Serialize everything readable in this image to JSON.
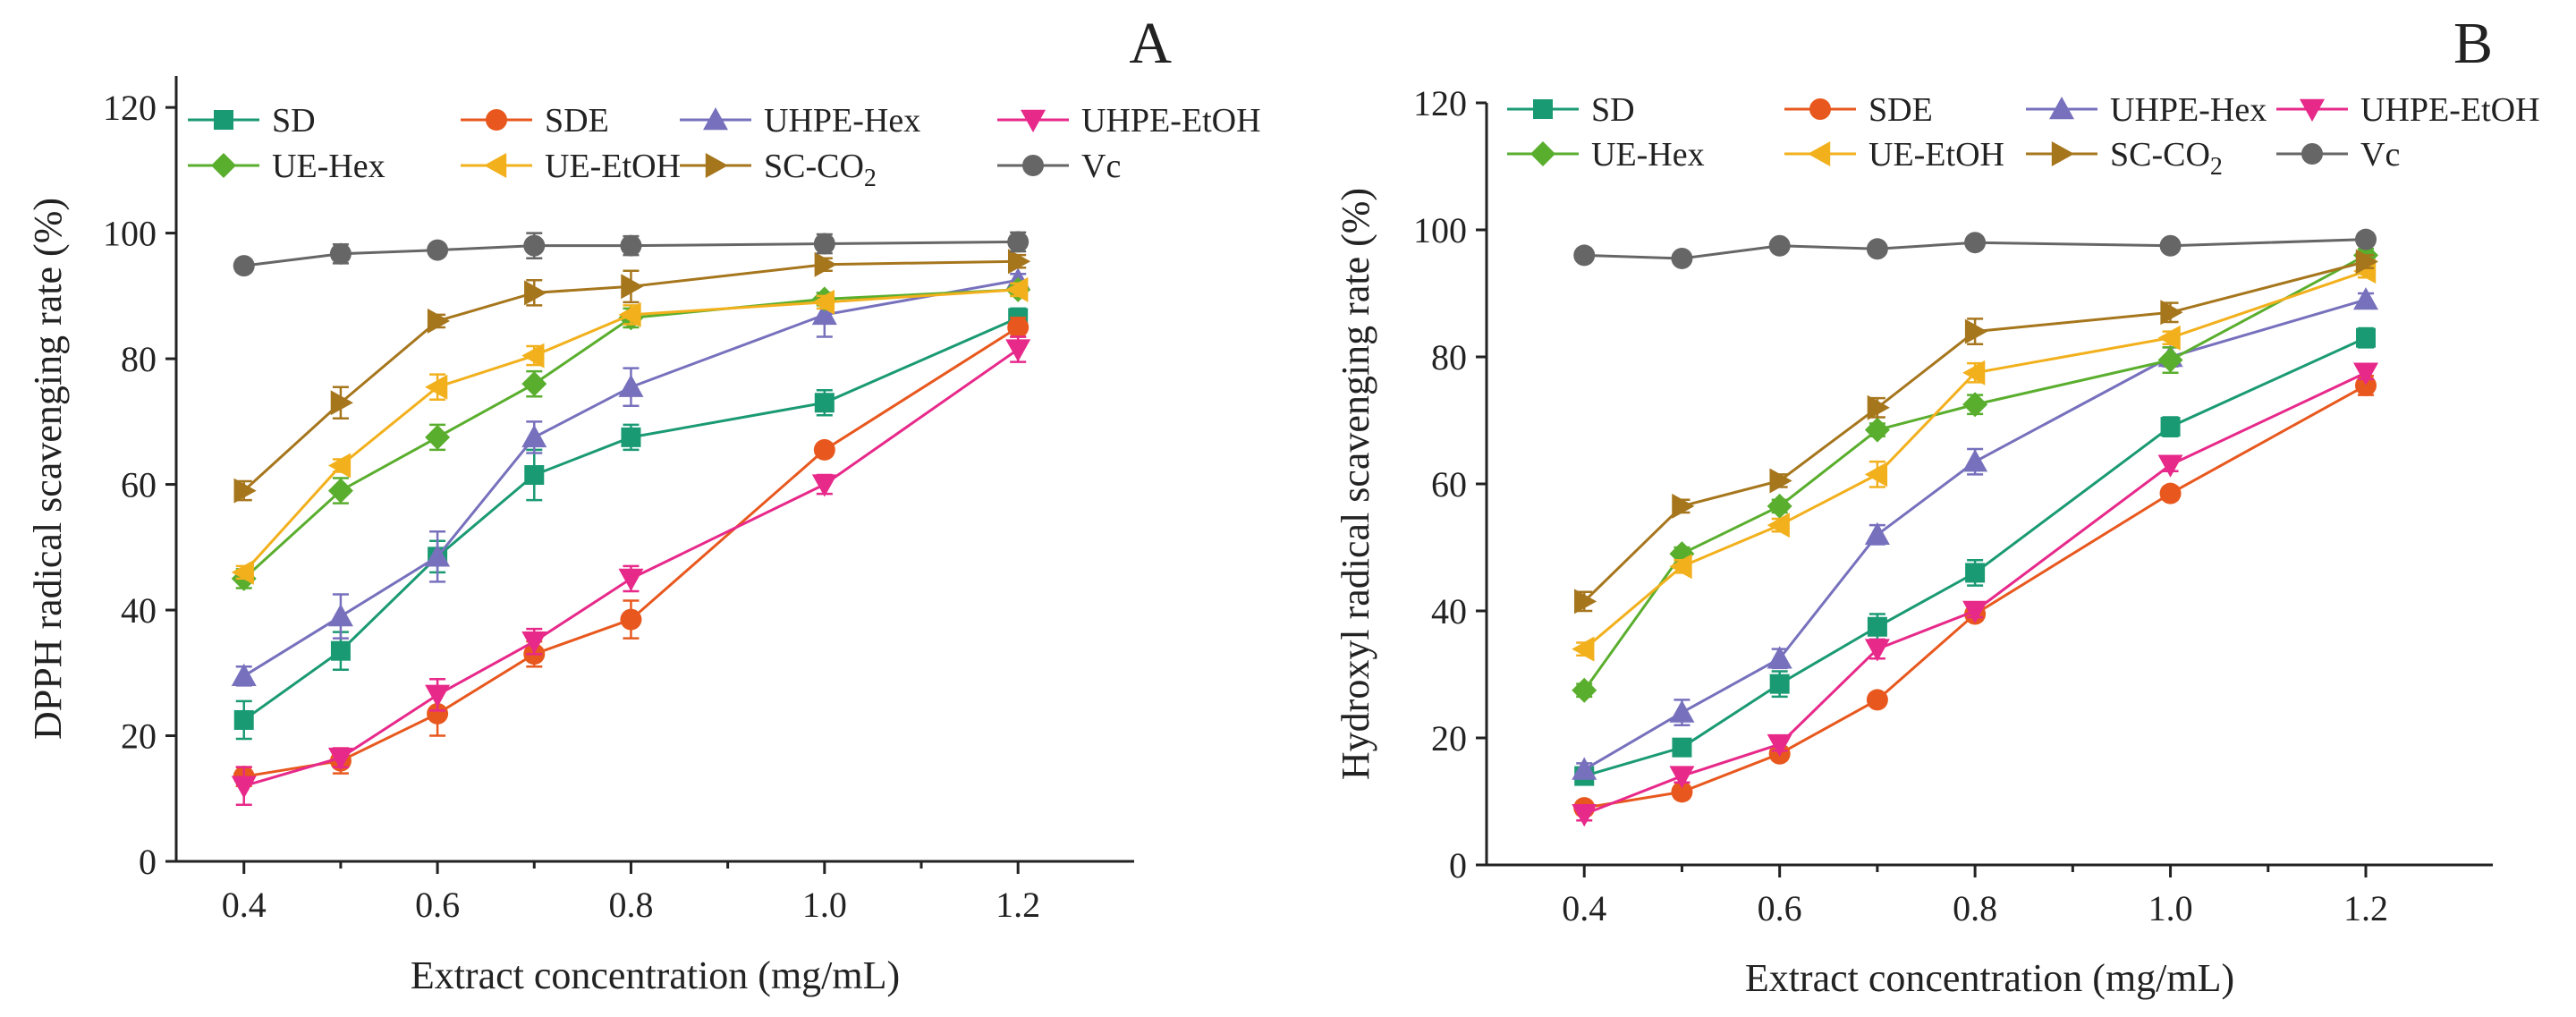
{
  "figure": {
    "panel_labels": [
      "A",
      "B"
    ]
  },
  "series_styles": [
    {
      "name": "SD",
      "color": "#1a9a73",
      "marker": "square"
    },
    {
      "name": "SDE",
      "color": "#e8581e",
      "marker": "circle"
    },
    {
      "name": "UHPE-Hex",
      "color": "#7771bd",
      "marker": "triangle-up"
    },
    {
      "name": "UHPE-EtOH",
      "color": "#e7298a",
      "marker": "triangle-down"
    },
    {
      "name": "UE-Hex",
      "color": "#5aae2e",
      "marker": "diamond"
    },
    {
      "name": "UE-EtOH",
      "color": "#f2b01d",
      "marker": "triangle-left"
    },
    {
      "name": "SC-CO2",
      "label_main": "SC-CO",
      "label_sub": "2",
      "color": "#a6761d",
      "marker": "triangle-right"
    },
    {
      "name": "Vc",
      "color": "#666666",
      "marker": "circle"
    }
  ],
  "chart_data": [
    {
      "panel": "A",
      "type": "line",
      "xlabel": "Extract concentration (mg/mL)",
      "ylabel": "DPPH radical scavenging rate (%)",
      "xlim": [
        0.33,
        1.32
      ],
      "ylim": [
        0,
        125
      ],
      "xticks": [
        "0.4",
        "0.6",
        "0.8",
        "1.0",
        "1.2"
      ],
      "yticks": [
        "0",
        "20",
        "40",
        "60",
        "80",
        "100",
        "120"
      ],
      "x": [
        0.4,
        0.5,
        0.6,
        0.7,
        0.8,
        1.0,
        1.2
      ],
      "series": [
        {
          "name": "SD",
          "values": [
            22.5,
            33.5,
            48.5,
            61.5,
            67.5,
            73,
            86.5
          ],
          "errors": [
            3,
            3,
            2.5,
            4,
            2,
            2,
            1.5
          ]
        },
        {
          "name": "SDE",
          "values": [
            13.5,
            16,
            23.5,
            33,
            38.5,
            65.5,
            85
          ],
          "errors": [
            1.5,
            2,
            3.5,
            2,
            3,
            1,
            1.5
          ]
        },
        {
          "name": "UHPE-Hex",
          "values": [
            29.5,
            39,
            48.5,
            67.5,
            75.5,
            87,
            92.5
          ],
          "errors": [
            1.5,
            3.5,
            4,
            2.5,
            3,
            3.5,
            1
          ]
        },
        {
          "name": "UHPE-EtOH",
          "values": [
            12,
            16.5,
            26.5,
            35,
            45,
            60,
            81.5
          ],
          "errors": [
            3,
            1.5,
            2.5,
            2,
            2,
            1.5,
            2
          ]
        },
        {
          "name": "UE-Hex",
          "values": [
            45,
            59,
            67.5,
            76,
            86.5,
            89.5,
            91
          ],
          "errors": [
            1.5,
            2,
            2,
            2,
            1.5,
            1,
            1
          ]
        },
        {
          "name": "UE-EtOH",
          "values": [
            46,
            63,
            75.5,
            80.5,
            87,
            89,
            91
          ],
          "errors": [
            1,
            1,
            2,
            1.5,
            1.5,
            1,
            1
          ]
        },
        {
          "name": "SC-CO2",
          "values": [
            59,
            73,
            86,
            90.5,
            91.5,
            95,
            95.5
          ],
          "errors": [
            1.5,
            2.5,
            1,
            2,
            2.5,
            1,
            1
          ]
        },
        {
          "name": "Vc",
          "values": [
            94.8,
            96.7,
            97.3,
            98,
            98,
            98.3,
            98.6
          ],
          "errors": [
            1,
            1.5,
            1,
            2,
            1.5,
            1.5,
            1.5
          ]
        }
      ]
    },
    {
      "panel": "B",
      "type": "line",
      "xlabel": "Extract concentration (mg/mL)",
      "ylabel": "Hydroxyl radical scavenging rate (%)",
      "xlim": [
        0.3,
        1.33
      ],
      "ylim": [
        0,
        120
      ],
      "xticks": [
        "0.4",
        "0.6",
        "0.8",
        "1.0",
        "1.2"
      ],
      "yticks": [
        "0",
        "20",
        "40",
        "60",
        "80",
        "100",
        "120"
      ],
      "x": [
        0.4,
        0.5,
        0.6,
        0.7,
        0.8,
        1.0,
        1.2
      ],
      "series": [
        {
          "name": "SD",
          "values": [
            14,
            18.5,
            28.5,
            37.5,
            46,
            69,
            83
          ],
          "errors": [
            1,
            1,
            2,
            2,
            2,
            1.5,
            1.5
          ]
        },
        {
          "name": "SDE",
          "values": [
            9,
            11.5,
            17.5,
            26,
            39.5,
            58.5,
            75.5
          ],
          "errors": [
            1,
            1,
            1,
            1,
            1,
            1,
            1.5
          ]
        },
        {
          "name": "UHPE-Hex",
          "values": [
            15,
            24,
            32.5,
            52,
            63.5,
            80,
            89
          ],
          "errors": [
            1,
            2,
            1.5,
            1.5,
            2,
            1.5,
            1
          ]
        },
        {
          "name": "UHPE-EtOH",
          "values": [
            8,
            14,
            19,
            34,
            40,
            63,
            77.5
          ],
          "errors": [
            1,
            1,
            1,
            1.5,
            1,
            1,
            1
          ]
        },
        {
          "name": "UE-Hex",
          "values": [
            27.5,
            49,
            56.5,
            68.5,
            72.5,
            79.5,
            96
          ],
          "errors": [
            1,
            1,
            1,
            1,
            1.5,
            2,
            1
          ]
        },
        {
          "name": "UE-EtOH",
          "values": [
            34,
            47,
            53.5,
            61.5,
            77.5,
            83,
            93.5
          ],
          "errors": [
            1,
            1,
            1,
            2,
            1.5,
            1,
            1
          ]
        },
        {
          "name": "SC-CO2",
          "values": [
            41.5,
            56.5,
            60.5,
            72,
            84,
            87,
            95
          ],
          "errors": [
            1.5,
            1,
            1,
            1.5,
            2,
            1.5,
            1
          ]
        },
        {
          "name": "Vc",
          "values": [
            96,
            95.5,
            97.5,
            97,
            98,
            97.5,
            98.5
          ],
          "errors": [
            0.5,
            0.5,
            0.5,
            0.5,
            0.5,
            0.5,
            0.5
          ]
        }
      ]
    }
  ]
}
